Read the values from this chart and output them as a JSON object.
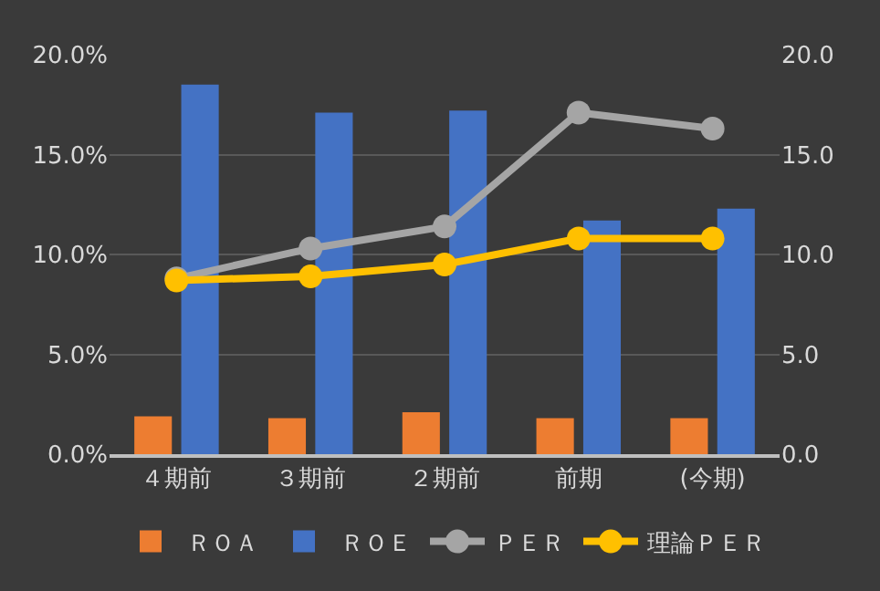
{
  "chart_data": {
    "type": "bar",
    "categories": [
      "４期前",
      "３期前",
      "２期前",
      "前期",
      "(今期)"
    ],
    "series": [
      {
        "name": "ＲＯＡ",
        "color": "#ed7d31",
        "values": [
          1.9,
          1.8,
          2.1,
          1.8,
          1.8
        ]
      },
      {
        "name": "ＲＯＥ",
        "color": "#4472c4",
        "values": [
          18.5,
          17.1,
          17.2,
          11.7,
          12.3
        ]
      },
      {
        "name": "ＰＥＲ",
        "type": "line",
        "axis": "y2",
        "color": "#a5a5a5",
        "values": [
          8.8,
          10.3,
          11.4,
          17.1,
          16.3
        ]
      },
      {
        "name": "理論ＰＥＲ",
        "type": "line",
        "axis": "y2",
        "color": "#ffc000",
        "values": [
          8.7,
          8.9,
          9.5,
          10.8,
          10.8
        ]
      }
    ],
    "ylim": [
      0,
      20
    ],
    "yticks": [
      {
        "value": 0,
        "label": "0.0%"
      },
      {
        "value": 5,
        "label": "5.0%"
      },
      {
        "value": 10,
        "label": "10.0%"
      },
      {
        "value": 15,
        "label": "15.0%"
      },
      {
        "value": 20,
        "label": "20.0%"
      }
    ],
    "y2lim": [
      0,
      20
    ],
    "y2ticks": [
      {
        "value": 0,
        "label": "0.0"
      },
      {
        "value": 5,
        "label": "5.0"
      },
      {
        "value": 10,
        "label": "10.0"
      },
      {
        "value": 15,
        "label": "15.0"
      },
      {
        "value": 20,
        "label": "20.0"
      }
    ],
    "grid": "y",
    "legend": "bottom",
    "marker": "circle",
    "line_style": "solid"
  }
}
